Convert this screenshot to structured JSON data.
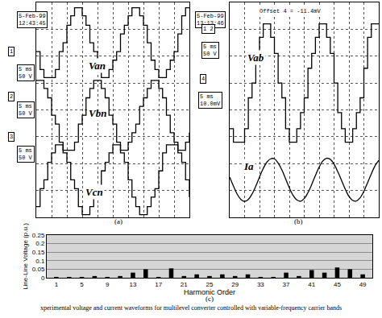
{
  "caption": "xperimental voltage and current waveforms for multilevel converter controlled with variable-frequency carrier bands",
  "chart_data": [
    {
      "type": "line",
      "title": "(a)",
      "grid": true,
      "tick_labels": false,
      "xlim": [
        0,
        10
      ],
      "ylim": [
        -4,
        4
      ],
      "xticks": [
        0,
        1,
        2,
        3,
        4,
        5,
        6,
        7,
        8,
        9,
        10
      ],
      "yticks": [
        -4,
        -3,
        -2,
        -1,
        0,
        1,
        2,
        3,
        4
      ],
      "annotations": [
        [
          "5-Feb-99",
          "12:43:45"
        ],
        [
          "1"
        ],
        [
          "5 ms",
          "50 V"
        ],
        [
          "2"
        ],
        [
          "5 ms",
          "50 V"
        ],
        [
          "3"
        ],
        [
          "5 ms",
          "50 V"
        ]
      ],
      "x": [
        0,
        0.25,
        0.5,
        0.75,
        1,
        1.25,
        1.5,
        1.75,
        2,
        2.25,
        2.5,
        2.75,
        3,
        3.25,
        3.5,
        3.75,
        4,
        4.25,
        4.5,
        4.75,
        5,
        5.25,
        5.5,
        5.75,
        6,
        6.25,
        6.5,
        6.75,
        7,
        7.25,
        7.5,
        7.75,
        8,
        8.25,
        8.5,
        8.75,
        9,
        9.25,
        9.5,
        9.75,
        10
      ],
      "series": [
        {
          "name": "Van",
          "color": "#000000",
          "line_style": "step",
          "values": [
            2.17,
            1.5,
            1.2,
            1.2,
            1.2,
            1.5,
            2.17,
            2.5,
            3.15,
            3.5,
            3.8,
            3.8,
            3.5,
            3.15,
            2.5,
            2.17,
            1.5,
            1.2,
            1.2,
            1.5,
            1.85,
            2.17,
            2.83,
            3.15,
            3.5,
            3.8,
            3.8,
            3.5,
            3.15,
            2.5,
            1.85,
            1.5,
            1.2,
            1.2,
            1.5,
            1.85,
            2.17,
            2.83,
            3.5,
            3.8,
            3.8
          ]
        },
        {
          "name": "Vbn",
          "color": "#000000",
          "line_style": "step",
          "values": [
            1.1,
            1.1,
            0.8,
            0.45,
            -0.2,
            -0.53,
            -1.2,
            -1.5,
            -1.5,
            -1.5,
            -1.2,
            -0.53,
            -0.2,
            0.45,
            0.8,
            1.1,
            1.1,
            0.8,
            0.45,
            -0.2,
            -0.53,
            -1.2,
            -1.5,
            -1.5,
            -1.2,
            -0.85,
            -0.53,
            0.13,
            0.45,
            0.8,
            1.1,
            1.1,
            0.8,
            0.45,
            -0.2,
            -0.85,
            -1.2,
            -1.5,
            -1.5,
            -1.2,
            -0.85
          ]
        },
        {
          "name": "Vcn",
          "color": "#000000",
          "line_style": "step",
          "values": [
            -3.6,
            -2.93,
            -2.6,
            -1.95,
            -1.6,
            -1.3,
            -1.3,
            -1.6,
            -1.95,
            -2.6,
            -2.93,
            -3.6,
            -3.9,
            -3.9,
            -3.6,
            -3.25,
            -2.93,
            -2.27,
            -1.95,
            -1.6,
            -1.3,
            -1.3,
            -1.6,
            -1.95,
            -2.6,
            -3.25,
            -3.6,
            -3.9,
            -3.9,
            -3.6,
            -3.25,
            -2.93,
            -2.27,
            -1.6,
            -1.3,
            -1.3,
            -1.3,
            -1.6,
            -1.95,
            -2.6,
            -3.25
          ]
        }
      ]
    },
    {
      "type": "line",
      "title": "(b)",
      "grid": true,
      "tick_labels": false,
      "xlim": [
        0,
        10
      ],
      "ylim": [
        -4,
        4
      ],
      "xticks": [
        0,
        1,
        2,
        3,
        4,
        5,
        6,
        7,
        8,
        9,
        10
      ],
      "yticks": [
        -4,
        -3,
        -2,
        -1,
        0,
        1,
        2,
        3,
        4
      ],
      "annotations": [
        [
          "5-Feb-99",
          "13:13:46"
        ],
        [
          "Offset 4 = -11.4mV"
        ],
        [
          "1 2"
        ],
        [
          "5 ms",
          "50 V"
        ],
        [
          "4"
        ],
        [
          "5 ms",
          "10.0mV"
        ]
      ],
      "x": [
        0,
        0.25,
        0.5,
        0.75,
        1,
        1.25,
        1.5,
        1.75,
        2,
        2.25,
        2.5,
        2.75,
        3,
        3.25,
        3.5,
        3.75,
        4,
        4.25,
        4.5,
        4.75,
        5,
        5.25,
        5.5,
        5.75,
        6,
        6.25,
        6.5,
        6.75,
        7,
        7.25,
        7.5,
        7.75,
        8,
        8.25,
        8.5,
        8.75,
        9,
        9.25,
        9.5,
        9.75,
        10
      ],
      "series": [
        {
          "name": "Vab",
          "color": "#000000",
          "line_style": "step",
          "values": [
            -0.7,
            -1.2,
            -1.2,
            -1.2,
            -0.7,
            0.45,
            1,
            2.1,
            2.7,
            3.2,
            3.2,
            2.7,
            2.1,
            1,
            0.45,
            -0.7,
            -1.2,
            -1.2,
            -0.7,
            -0.1,
            0.45,
            1.55,
            2.1,
            2.7,
            3.2,
            3.2,
            2.7,
            2.1,
            1,
            -0.1,
            -0.7,
            -1.2,
            -1.2,
            -0.7,
            -0.1,
            0.45,
            1.55,
            2.7,
            3.2,
            3.2,
            3.2
          ]
        },
        {
          "name": "Ia",
          "color": "#000000",
          "line_style": "smooth",
          "values": [
            -2.5,
            -2.83,
            -3.13,
            -3.33,
            -3.4,
            -3.33,
            -3.13,
            -2.84,
            -2.5,
            -2.18,
            -1.94,
            -1.82,
            -1.82,
            -1.98,
            -2.23,
            -2.56,
            -2.9,
            -3.18,
            -3.35,
            -3.4,
            -3.3,
            -3.08,
            -2.78,
            -2.44,
            -2.13,
            -1.9,
            -1.8,
            -1.84,
            -2.02,
            -2.3,
            -2.62,
            -2.95,
            -3.22,
            -3.37,
            -3.39,
            -3.27,
            -3.03,
            -2.71,
            -2.38,
            -2.08,
            -1.88
          ]
        }
      ]
    },
    {
      "type": "bar",
      "title": "(c)",
      "grid": true,
      "x_label": "Harmonic Order",
      "y_label": "Line-Line Voltage (p.u.)",
      "xlim": [
        -0.5,
        50.5
      ],
      "ylim": [
        0,
        0.25
      ],
      "xticks": [
        1,
        5,
        9,
        13,
        17,
        21,
        25,
        29,
        33,
        37,
        41,
        45,
        49
      ],
      "yticks": [
        0,
        0.05,
        0.1,
        0.15,
        0.2,
        0.25
      ],
      "color": "#000000",
      "x": [
        1,
        3,
        5,
        7,
        9,
        11,
        13,
        15,
        17,
        19,
        21,
        23,
        25,
        27,
        29,
        31,
        33,
        35,
        37,
        39,
        41,
        43,
        45,
        47,
        49
      ],
      "values": [
        0.005,
        0.005,
        0.005,
        0.01,
        0.005,
        0.01,
        0.03,
        0.05,
        0.005,
        0.055,
        0.01,
        0.02,
        0.01,
        0.02,
        0.01,
        0.02,
        0.005,
        0.005,
        0.03,
        0.01,
        0.045,
        0.03,
        0.06,
        0.05,
        0.02
      ]
    }
  ]
}
